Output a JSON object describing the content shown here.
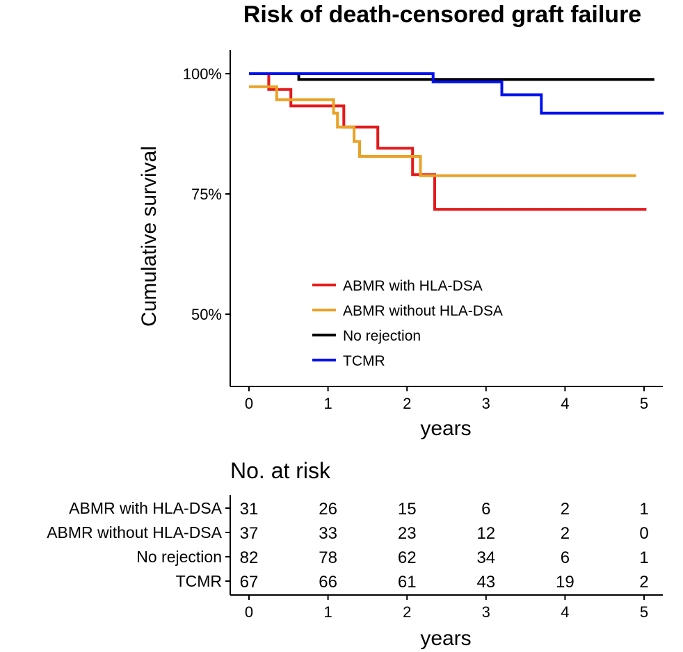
{
  "chart_data": {
    "type": "line",
    "title": "Risk of death-censored graft failure",
    "xlabel": "years",
    "ylabel": "Cumulative survival",
    "xlim": [
      -0.3,
      5.25
    ],
    "ylim": [
      35,
      105
    ],
    "xticks": [
      "0",
      "1",
      "2",
      "3",
      "4",
      "5"
    ],
    "yticks": [
      {
        "value": 100,
        "label": "100%"
      },
      {
        "value": 75,
        "label": "75%"
      },
      {
        "value": 50,
        "label": "50%"
      }
    ],
    "legend_position": "bottom-center",
    "series": [
      {
        "name": "ABMR with HLA-DSA",
        "color": "#e31a1c",
        "steps": [
          [
            0,
            100
          ],
          [
            0.25,
            96.7
          ],
          [
            0.53,
            93.3
          ],
          [
            1.2,
            88.9
          ],
          [
            1.63,
            84.5
          ],
          [
            2.07,
            79
          ],
          [
            2.35,
            71.8
          ],
          [
            5.03,
            71.8
          ]
        ]
      },
      {
        "name": "ABMR without HLA-DSA",
        "color": "#e9a227",
        "steps": [
          [
            0,
            97.3
          ],
          [
            0.35,
            94.6
          ],
          [
            1.07,
            91.8
          ],
          [
            1.12,
            88.9
          ],
          [
            1.33,
            85.9
          ],
          [
            1.4,
            82.8
          ],
          [
            2.17,
            78.8
          ],
          [
            4.9,
            78.8
          ]
        ]
      },
      {
        "name": "No rejection",
        "color": "#000000",
        "steps": [
          [
            0,
            100
          ],
          [
            0.63,
            98.8
          ],
          [
            5.13,
            98.8
          ]
        ]
      },
      {
        "name": "TCMR",
        "color": "#0011ee",
        "steps": [
          [
            0,
            100
          ],
          [
            2.33,
            98.3
          ],
          [
            3.2,
            95.6
          ],
          [
            3.7,
            91.8
          ],
          [
            5.25,
            91.8
          ]
        ]
      }
    ]
  },
  "risk_table": {
    "title": "No. at risk",
    "xlabel": "years",
    "times": [
      "0",
      "1",
      "2",
      "3",
      "4",
      "5"
    ],
    "rows": [
      {
        "label": "ABMR with HLA-DSA",
        "values": [
          "31",
          "26",
          "15",
          "6",
          "2",
          "1"
        ]
      },
      {
        "label": "ABMR without HLA-DSA",
        "values": [
          "37",
          "33",
          "23",
          "12",
          "2",
          "0"
        ]
      },
      {
        "label": "No rejection",
        "values": [
          "82",
          "78",
          "62",
          "34",
          "6",
          "1"
        ]
      },
      {
        "label": "TCMR",
        "values": [
          "67",
          "66",
          "61",
          "43",
          "19",
          "2"
        ]
      }
    ]
  }
}
